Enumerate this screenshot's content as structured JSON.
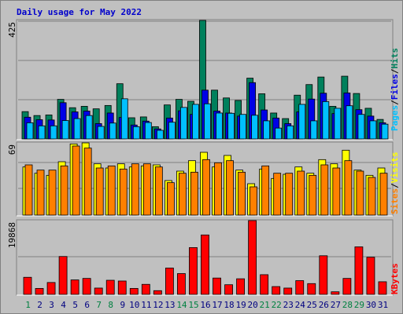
{
  "page_title": "Daily usage for May 2022",
  "colors": {
    "background": "#c0c0c0",
    "grid": "#808080",
    "hits": "#00805c",
    "files": "#0000e6",
    "pages": "#00c0ff",
    "visits": "#ffff00",
    "sites": "#ff8000",
    "kbytes": "#ff0000",
    "weekend_day": "#008040",
    "weekday": "#000080"
  },
  "chart_data": [
    {
      "type": "bar",
      "panel": "hits-files-pages",
      "max_label": "425",
      "legend": {
        "pages": "Pages",
        "sep1": "/",
        "files": "Files",
        "sep2": "/",
        "hits": "Hits"
      },
      "ylim": [
        0,
        425
      ],
      "series": [
        {
          "name": "Hits",
          "values": [
            98,
            84,
            86,
            142,
            112,
            117,
            108,
            120,
            198,
            76,
            79,
            44,
            122,
            142,
            135,
            425,
            175,
            147,
            138,
            218,
            162,
            93,
            73,
            157,
            195,
            222,
            117,
            225,
            163,
            110,
            70
          ]
        },
        {
          "name": "Files",
          "values": [
            78,
            69,
            68,
            130,
            97,
            100,
            55,
            93,
            77,
            50,
            64,
            36,
            75,
            101,
            88,
            175,
            100,
            93,
            82,
            202,
            104,
            75,
            55,
            97,
            143,
            164,
            91,
            165,
            105,
            82,
            58
          ]
        },
        {
          "name": "Pages",
          "values": [
            58,
            47,
            47,
            66,
            73,
            84,
            45,
            57,
            144,
            44,
            59,
            31,
            60,
            113,
            124,
            126,
            93,
            92,
            88,
            85,
            65,
            39,
            47,
            124,
            65,
            134,
            110,
            119,
            88,
            65,
            53
          ]
        }
      ]
    },
    {
      "type": "bar",
      "panel": "visits-sites",
      "max_label": "69",
      "legend": {
        "sites": "Sites",
        "sep": "/",
        "visits": "Visits"
      },
      "ylim": [
        0,
        69
      ],
      "series": [
        {
          "name": "Visits",
          "values": [
            46,
            40,
            38,
            51,
            68,
            69,
            49,
            45,
            49,
            46,
            47,
            48,
            33,
            42,
            52,
            60,
            46,
            57,
            43,
            30,
            44,
            35,
            39,
            46,
            40,
            53,
            49,
            62,
            43,
            38,
            45
          ]
        },
        {
          "name": "Sites",
          "values": [
            48,
            43,
            43,
            47,
            66,
            64,
            45,
            47,
            44,
            49,
            49,
            46,
            31,
            40,
            41,
            53,
            50,
            52,
            41,
            27,
            47,
            40,
            40,
            42,
            38,
            48,
            45,
            52,
            42,
            36,
            40
          ]
        }
      ]
    },
    {
      "type": "bar",
      "panel": "kbytes",
      "max_label": "19868",
      "legend": {
        "kbytes": "KBytes"
      },
      "ylim": [
        0,
        19868
      ],
      "series": [
        {
          "name": "KBytes",
          "values": [
            4600,
            1600,
            3200,
            10200,
            3900,
            4300,
            1700,
            3800,
            3600,
            1600,
            2700,
            1000,
            7100,
            5600,
            12600,
            16000,
            4400,
            2600,
            4200,
            19868,
            5300,
            2100,
            1700,
            3700,
            2900,
            10400,
            700,
            4300,
            12800,
            10000,
            3400
          ]
        }
      ]
    }
  ],
  "x_axis": {
    "days": [
      "1",
      "2",
      "3",
      "4",
      "5",
      "6",
      "7",
      "8",
      "9",
      "10",
      "11",
      "12",
      "13",
      "14",
      "15",
      "16",
      "17",
      "18",
      "19",
      "20",
      "21",
      "22",
      "23",
      "24",
      "25",
      "26",
      "27",
      "28",
      "29",
      "30",
      "31"
    ],
    "weekend": [
      true,
      false,
      false,
      false,
      false,
      false,
      true,
      true,
      false,
      false,
      false,
      false,
      false,
      true,
      true,
      false,
      false,
      false,
      false,
      false,
      true,
      true,
      false,
      false,
      false,
      false,
      false,
      true,
      true,
      false,
      false
    ]
  }
}
